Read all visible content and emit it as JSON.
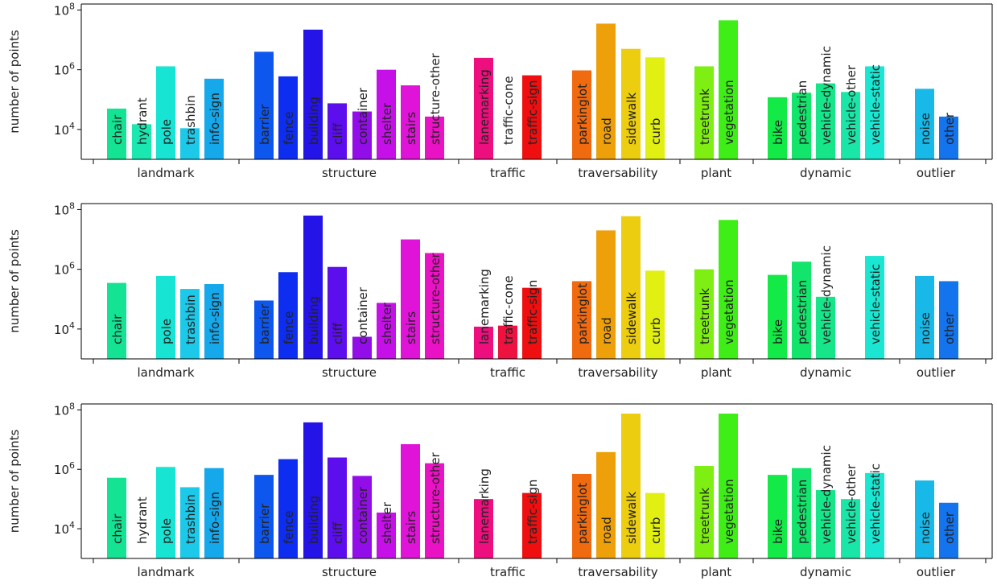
{
  "chart_data": [
    {
      "type": "bar",
      "ylabel": "number of points",
      "yscale": "log",
      "ylim": [
        1000,
        100000000
      ],
      "ytick_labels": [
        "10^4",
        "10^6",
        "10^8"
      ],
      "ytick_values": [
        10000,
        1000000,
        100000000
      ],
      "groups": [
        {
          "label": "landmark",
          "categories": [
            "chair",
            "hydrant",
            "pole",
            "trashbin",
            "info-sign"
          ],
          "values": [
            50000,
            15000,
            1300000,
            11000,
            500000
          ]
        },
        {
          "label": "structure",
          "categories": [
            "barrier",
            "fence",
            "building",
            "cliff",
            "container",
            "shelter",
            "stairs",
            "structure-other"
          ],
          "values": [
            4000000,
            600000,
            22000000,
            75000,
            40000,
            1000000,
            300000,
            27000
          ]
        },
        {
          "label": "traffic",
          "categories": [
            "lanemarking",
            "traffic-cone",
            "traffic-sign"
          ],
          "values": [
            2500000,
            0,
            650000
          ]
        },
        {
          "label": "traversability",
          "categories": [
            "parkinglot",
            "road",
            "sidewalk",
            "curb"
          ],
          "values": [
            950000,
            35000000,
            5000000,
            2600000
          ]
        },
        {
          "label": "plant",
          "categories": [
            "treetrunk",
            "vegetation"
          ],
          "values": [
            1300000,
            45000000
          ]
        },
        {
          "label": "dynamic",
          "categories": [
            "bike",
            "pedestrian",
            "vehicle-dynamic",
            "vehicle-other",
            "vehicle-static"
          ],
          "values": [
            120000,
            170000,
            350000,
            180000,
            1300000
          ]
        },
        {
          "label": "outlier",
          "categories": [
            "noise",
            "other"
          ],
          "values": [
            230000,
            27000
          ]
        }
      ]
    },
    {
      "type": "bar",
      "ylabel": "number of points",
      "yscale": "log",
      "ylim": [
        1000,
        100000000
      ],
      "ytick_labels": [
        "10^4",
        "10^6",
        "10^8"
      ],
      "ytick_values": [
        10000,
        1000000,
        100000000
      ],
      "groups": [
        {
          "label": "landmark",
          "categories": [
            "chair",
            "",
            "pole",
            "trashbin",
            "info-sign"
          ],
          "values": [
            350000,
            0,
            600000,
            220000,
            320000
          ]
        },
        {
          "label": "structure",
          "categories": [
            "barrier",
            "fence",
            "building",
            "cliff",
            "container",
            "shelter",
            "stairs",
            "structure-other"
          ],
          "values": [
            90000,
            800000,
            63000000,
            1200000,
            5500,
            75000,
            10000000,
            3500000
          ]
        },
        {
          "label": "traffic",
          "categories": [
            "lanemarking",
            "traffic-cone",
            "traffic-sign"
          ],
          "values": [
            12000,
            13000,
            240000
          ]
        },
        {
          "label": "traversability",
          "categories": [
            "parkinglot",
            "road",
            "sidewalk",
            "curb"
          ],
          "values": [
            400000,
            20000000,
            60000000,
            900000
          ]
        },
        {
          "label": "plant",
          "categories": [
            "treetrunk",
            "vegetation"
          ],
          "values": [
            1000000,
            45000000
          ]
        },
        {
          "label": "dynamic",
          "categories": [
            "bike",
            "pedestrian",
            "vehicle-dynamic",
            "",
            "vehicle-static"
          ],
          "values": [
            650000,
            1800000,
            120000,
            0,
            2800000
          ]
        },
        {
          "label": "outlier",
          "categories": [
            "noise",
            "other"
          ],
          "values": [
            600000,
            400000
          ]
        }
      ]
    },
    {
      "type": "bar",
      "ylabel": "number of points",
      "yscale": "log",
      "ylim": [
        1000,
        100000000
      ],
      "ytick_labels": [
        "10^4",
        "10^6",
        "10^8"
      ],
      "ytick_values": [
        10000,
        1000000,
        100000000
      ],
      "groups": [
        {
          "label": "landmark",
          "categories": [
            "chair",
            "hydrant",
            "pole",
            "trashbin",
            "info-sign"
          ],
          "values": [
            520000,
            0,
            1200000,
            250000,
            1100000
          ]
        },
        {
          "label": "structure",
          "categories": [
            "barrier",
            "fence",
            "building",
            "cliff",
            "container",
            "shelter",
            "stairs",
            "structure-other"
          ],
          "values": [
            650000,
            2200000,
            38000000,
            2500000,
            600000,
            35000,
            7000000,
            1600000
          ]
        },
        {
          "label": "traffic",
          "categories": [
            "lanemarking",
            "",
            "traffic-sign"
          ],
          "values": [
            100000,
            0,
            160000
          ]
        },
        {
          "label": "traversability",
          "categories": [
            "parkinglot",
            "road",
            "sidewalk",
            "curb"
          ],
          "values": [
            700000,
            3800000,
            75000000,
            160000
          ]
        },
        {
          "label": "plant",
          "categories": [
            "treetrunk",
            "vegetation"
          ],
          "values": [
            1300000,
            75000000
          ]
        },
        {
          "label": "dynamic",
          "categories": [
            "bike",
            "pedestrian",
            "vehicle-dynamic",
            "vehicle-other",
            "vehicle-static"
          ],
          "values": [
            650000,
            1100000,
            200000,
            100000,
            750000
          ]
        },
        {
          "label": "outlier",
          "categories": [
            "noise",
            "other"
          ],
          "values": [
            420000,
            75000
          ]
        }
      ]
    }
  ],
  "colors": {
    "chair": "#13e393",
    "hydrant": "#1ae8b0",
    "pole": "#17e4d3",
    "trashbin": "#1dc9e8",
    "info-sign": "#15a8eb",
    "barrier": "#0d56ee",
    "fence": "#0d2ef0",
    "building": "#2514e8",
    "cliff": "#5d0eed",
    "container": "#920de8",
    "shelter": "#c511e8",
    "stairs": "#e013d9",
    "structure-other": "#ea12c5",
    "lanemarking": "#ee0f7e",
    "traffic-cone": "#ee1240",
    "traffic-sign": "#ef0f10",
    "parkinglot": "#f06a10",
    "road": "#eda009",
    "sidewalk": "#eccd10",
    "curb": "#e2ef12",
    "treetrunk": "#7fee12",
    "vegetation": "#3fee16",
    "bike": "#14ea47",
    "pedestrian": "#13e46c",
    "vehicle-dynamic": "#17e58a",
    "vehicle-other": "#1ae6a8",
    "vehicle-static": "#1ae6d1",
    "noise": "#18b8e8",
    "other": "#1374ed"
  }
}
